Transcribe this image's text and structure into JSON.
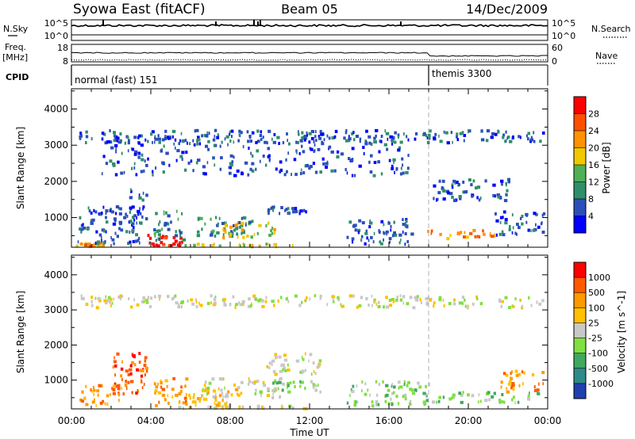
{
  "header": {
    "station": "Syowa East (fitACF)",
    "beam": "Beam 05",
    "date": "14/Dec/2009"
  },
  "noise_panel": {
    "left_label": "N.Sky",
    "right_label": "N.Search",
    "left_ticks": [
      "10^5",
      "10^0"
    ],
    "right_ticks": [
      "10^5",
      "10^0"
    ]
  },
  "freq_panel": {
    "left_label_1": "Freq.",
    "left_label_2": "[MHz]",
    "right_label": "Nave",
    "left_ticks": [
      "18",
      "8"
    ],
    "right_ticks": [
      "60",
      "0"
    ]
  },
  "cpid": {
    "label": "CPID",
    "programs": [
      {
        "name": "normal (fast) 151",
        "start_hour": 0
      },
      {
        "name": "themis 3300",
        "start_hour": 18
      }
    ]
  },
  "colors": {
    "power": [
      "#0000ff",
      "#2b4fb8",
      "#2f8f6a",
      "#4fb054",
      "#f0c800",
      "#ff9400",
      "#ff5000",
      "#ff0000"
    ],
    "velocity": [
      "#ff0000",
      "#ff5a00",
      "#ff9a00",
      "#ffc000",
      "#c8c8c8",
      "#80e040",
      "#40a860",
      "#2f8a8a",
      "#2040b0"
    ]
  },
  "chart_data": [
    {
      "type": "heatmap",
      "quantity": "power",
      "xlabel": "Time UT",
      "ylabel": "Slant Range [km]",
      "xlim": [
        0,
        24
      ],
      "ylim": [
        180,
        4560
      ],
      "x_ticks": [
        "00:00",
        "04:00",
        "08:00",
        "12:00",
        "16:00",
        "20:00",
        "00:00"
      ],
      "y_ticks": [
        1000,
        2000,
        3000,
        4000
      ],
      "colorbar": {
        "label": "Power [dB]",
        "ticks": [
          "4",
          "8",
          "12",
          "16",
          "20",
          "24",
          "28"
        ]
      },
      "regions": [
        {
          "x": [
            0.2,
            1.6
          ],
          "y": [
            250,
            330
          ],
          "level": 5
        },
        {
          "x": [
            3.8,
            5.6
          ],
          "y": [
            250,
            550
          ],
          "level": 7
        },
        {
          "x": [
            5.5,
            11.5
          ],
          "y": [
            230,
            310
          ],
          "level": 4
        },
        {
          "x": [
            0.3,
            3.5
          ],
          "y": [
            300,
            1350
          ],
          "level": 1
        },
        {
          "x": [
            2.9,
            3.8
          ],
          "y": [
            800,
            1850
          ],
          "level": 1
        },
        {
          "x": [
            4.1,
            5.6
          ],
          "y": [
            400,
            1250
          ],
          "level": 2
        },
        {
          "x": [
            6.3,
            9.3
          ],
          "y": [
            500,
            1100
          ],
          "level": 2
        },
        {
          "x": [
            7.6,
            10.2
          ],
          "y": [
            450,
            900
          ],
          "level": 4
        },
        {
          "x": [
            9.8,
            11.8
          ],
          "y": [
            1150,
            1350
          ],
          "level": 1
        },
        {
          "x": [
            13.8,
            17.3
          ],
          "y": [
            300,
            1000
          ],
          "level": 1
        },
        {
          "x": [
            17.8,
            21.3
          ],
          "y": [
            450,
            700
          ],
          "level": 5
        },
        {
          "x": [
            21.3,
            23.8
          ],
          "y": [
            550,
            1200
          ],
          "level": 1
        },
        {
          "x": [
            18.2,
            22.0
          ],
          "y": [
            1500,
            2100
          ],
          "level": 1
        },
        {
          "x": [
            0.3,
            23.8
          ],
          "y": [
            3100,
            3450
          ],
          "level": 1
        },
        {
          "x": [
            1.5,
            17.0
          ],
          "y": [
            2200,
            3300
          ],
          "level": 1
        }
      ]
    },
    {
      "type": "heatmap",
      "quantity": "velocity",
      "xlabel": "Time UT",
      "ylabel": "Slant Range [km]",
      "xlim": [
        0,
        24
      ],
      "ylim": [
        180,
        4560
      ],
      "x_ticks": [
        "00:00",
        "04:00",
        "08:00",
        "12:00",
        "16:00",
        "20:00",
        "00:00"
      ],
      "y_ticks": [
        1000,
        2000,
        3000,
        4000
      ],
      "colorbar": {
        "label": "Velocity [m s^-1]",
        "ticks": [
          "1000",
          "500",
          "100",
          "25",
          "-25",
          "-100",
          "-500",
          "-1000"
        ]
      },
      "regions": [
        {
          "x": [
            2.0,
            3.8
          ],
          "y": [
            600,
            1850
          ],
          "level": 1
        },
        {
          "x": [
            0.3,
            2.5
          ],
          "y": [
            300,
            900
          ],
          "level": 2
        },
        {
          "x": [
            4.0,
            5.8
          ],
          "y": [
            300,
            1100
          ],
          "level": 2
        },
        {
          "x": [
            5.8,
            8.5
          ],
          "y": [
            300,
            800
          ],
          "level": 3
        },
        {
          "x": [
            6.5,
            10.5
          ],
          "y": [
            500,
            1100
          ],
          "level": 4
        },
        {
          "x": [
            9.8,
            12.5
          ],
          "y": [
            1200,
            1800
          ],
          "level": 4
        },
        {
          "x": [
            10.0,
            12.5
          ],
          "y": [
            700,
            1000
          ],
          "level": 5
        },
        {
          "x": [
            13.8,
            18.0
          ],
          "y": [
            300,
            1000
          ],
          "level": 5
        },
        {
          "x": [
            18.0,
            23.5
          ],
          "y": [
            400,
            700
          ],
          "level": 5
        },
        {
          "x": [
            21.6,
            23.8
          ],
          "y": [
            700,
            1300
          ],
          "level": 2
        },
        {
          "x": [
            0.3,
            23.8
          ],
          "y": [
            3100,
            3450
          ],
          "level": 4
        },
        {
          "x": [
            5.0,
            12.0
          ],
          "y": [
            230,
            310
          ],
          "level": 4
        }
      ]
    }
  ]
}
